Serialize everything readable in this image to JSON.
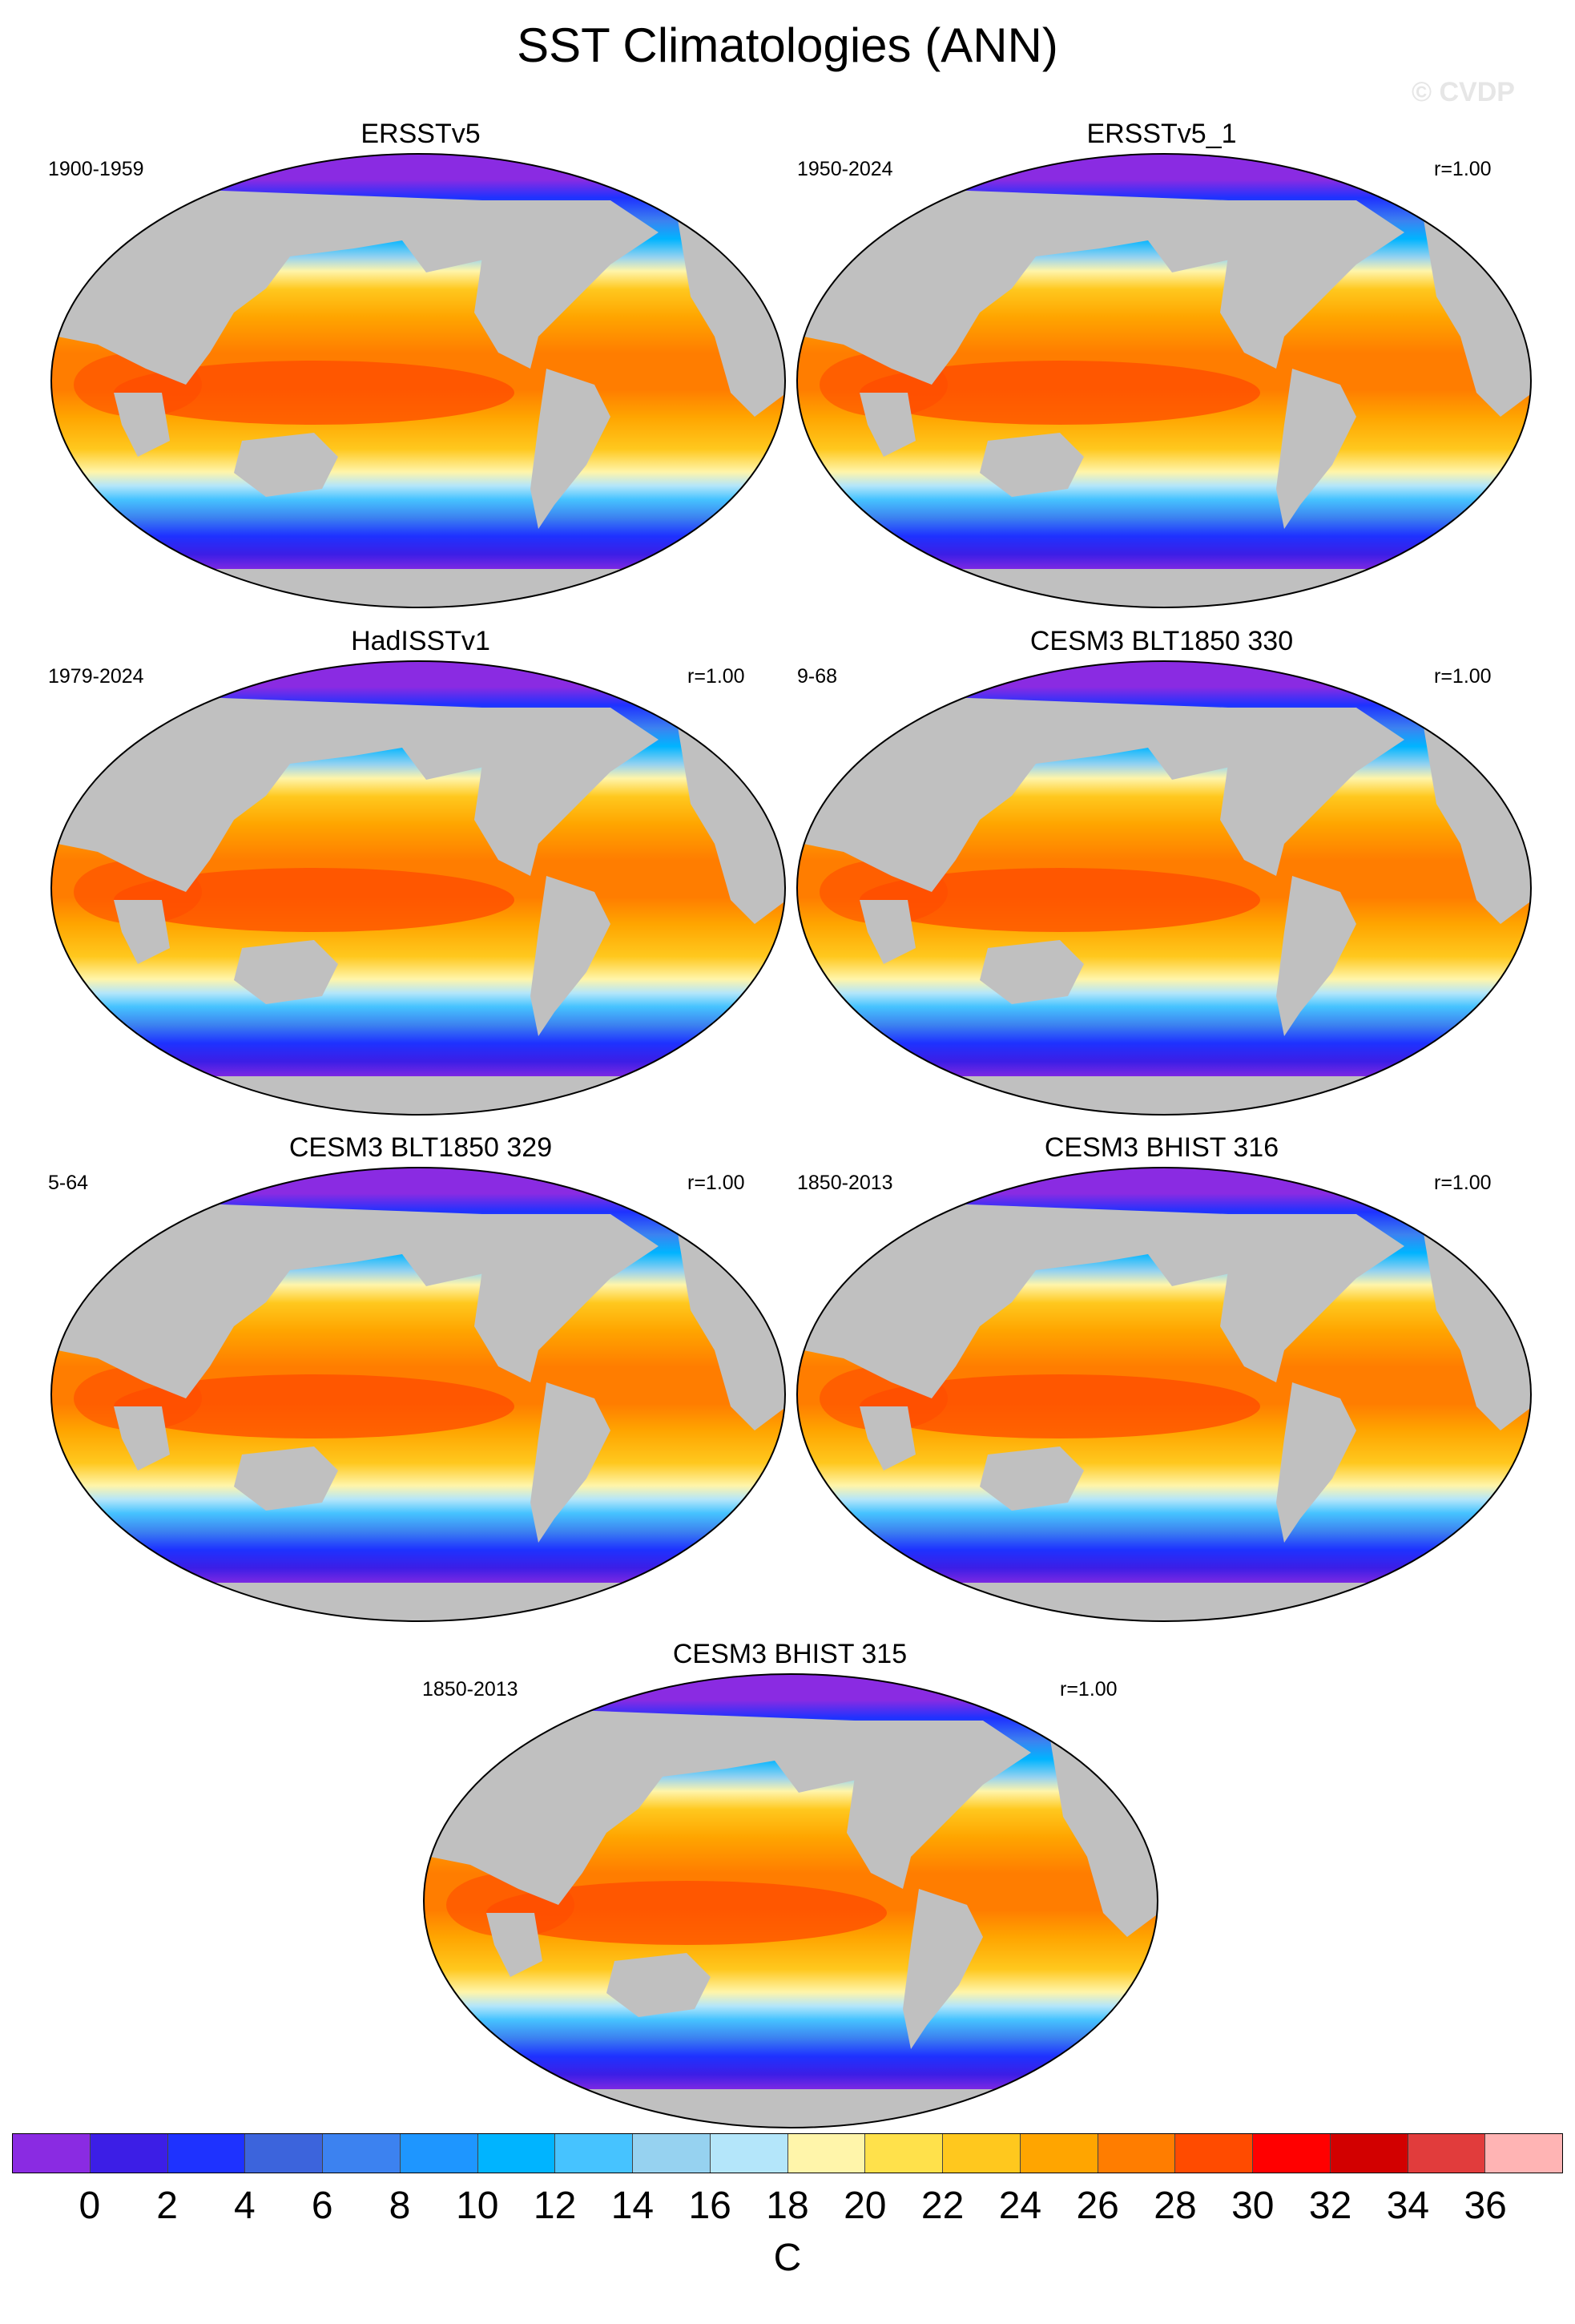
{
  "title": "SST Climatologies (ANN)",
  "watermark": "© CVDP",
  "panels": [
    {
      "title": "ERSSTv5",
      "left_label": "1900-1959",
      "right_label": ""
    },
    {
      "title": "ERSSTv5_1",
      "left_label": "1950-2024",
      "right_label": "r=1.00"
    },
    {
      "title": "HadISSTv1",
      "left_label": "1979-2024",
      "right_label": "r=1.00"
    },
    {
      "title": "CESM3 BLT1850 330",
      "left_label": "9-68",
      "right_label": "r=1.00"
    },
    {
      "title": "CESM3 BLT1850 329",
      "left_label": "5-64",
      "right_label": "r=1.00"
    },
    {
      "title": "CESM3 BHIST 316",
      "left_label": "1850-2013",
      "right_label": "r=1.00"
    },
    {
      "title": "CESM3 BHIST 315",
      "left_label": "1850-2013",
      "right_label": "r=1.00"
    }
  ],
  "colorbar": {
    "unit": "C",
    "ticks": [
      "0",
      "2",
      "4",
      "6",
      "8",
      "10",
      "12",
      "14",
      "16",
      "18",
      "20",
      "22",
      "24",
      "26",
      "28",
      "30",
      "32",
      "34",
      "36"
    ],
    "colors": [
      "#8a2be2",
      "#3c1ee6",
      "#1e32ff",
      "#3c64dc",
      "#3c82f0",
      "#1e96ff",
      "#00b4ff",
      "#46c3ff",
      "#96d2f0",
      "#b4e6fa",
      "#fff5aa",
      "#ffe14b",
      "#ffc81e",
      "#ffa500",
      "#ff7d00",
      "#ff4b00",
      "#ff0000",
      "#d20000",
      "#e13c3c",
      "#ffb4b4"
    ]
  }
}
